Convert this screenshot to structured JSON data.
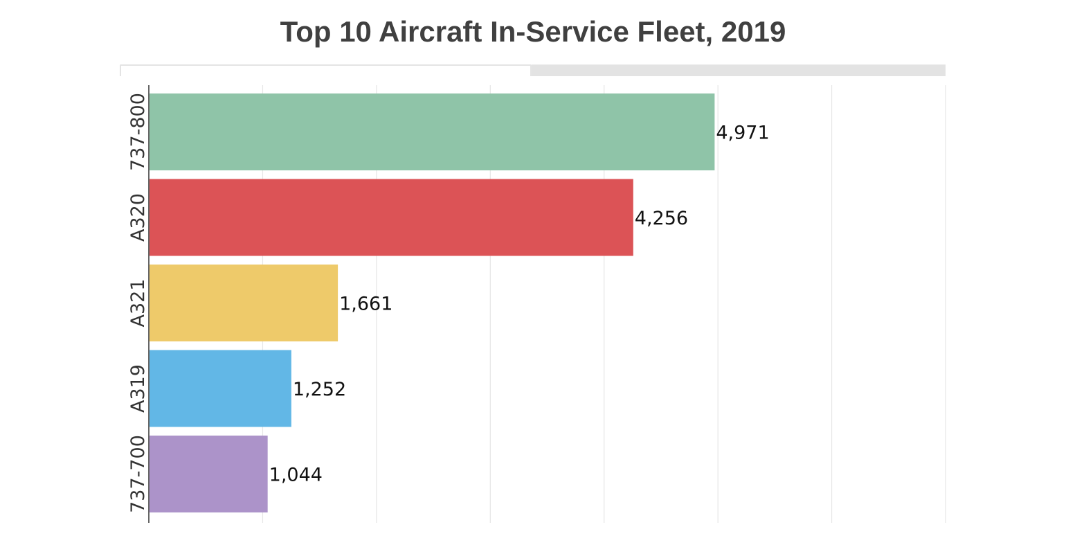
{
  "chart_data": {
    "type": "bar",
    "orientation": "horizontal",
    "title": "Top 10 Aircraft In-Service Fleet, 2019",
    "categories": [
      "737-800",
      "A320",
      "A321",
      "A319",
      "737-700"
    ],
    "values": [
      4971,
      4256,
      1661,
      1252,
      1044
    ],
    "value_labels": [
      "4,971",
      "4,256",
      "1,661",
      "1,252",
      "1,044"
    ],
    "colors": [
      "#8fc4a8",
      "#dc5356",
      "#eeca6a",
      "#62b7e6",
      "#ac93c9"
    ],
    "xlabel": "",
    "ylabel": "",
    "xlim": [
      0,
      7000
    ],
    "x_grid_step": 1000,
    "x_tick_labels_visible": false,
    "grid": true,
    "legend": "none"
  },
  "tabs": [
    {
      "label": "",
      "active": true
    },
    {
      "label": "",
      "active": false
    }
  ]
}
